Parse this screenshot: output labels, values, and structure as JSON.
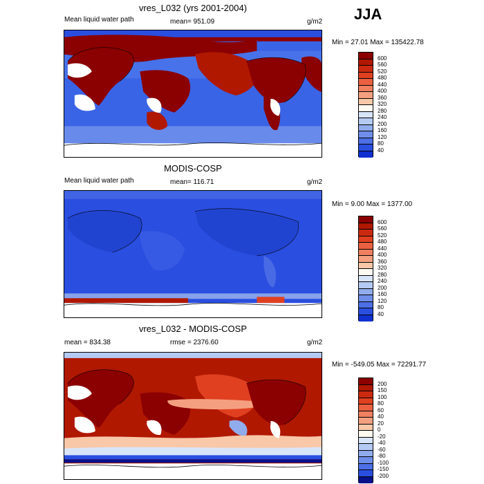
{
  "season": "JJA",
  "panels": [
    {
      "title": "vres_L032 (yrs 2001-2004)",
      "left_label": "Mean liquid water path",
      "stat": "mean= 951.09",
      "units": "g/m2",
      "minmax": "Min =  27.01 Max = 135422.78",
      "levels": [
        "600",
        "560",
        "520",
        "480",
        "440",
        "400",
        "360",
        "320",
        "280",
        "240",
        "200",
        "160",
        "120",
        "80",
        "40"
      ],
      "colors": [
        "#8b0000",
        "#b01800",
        "#cc2a10",
        "#e04020",
        "#ea6040",
        "#f08060",
        "#f4a080",
        "#f8c8a8",
        "#fdfaf2",
        "#d8e4f8",
        "#b4caf2",
        "#90acec",
        "#6e8eea",
        "#4c6ee6",
        "#2a4ee0",
        "#1030d0"
      ]
    },
    {
      "title": "MODIS-COSP",
      "left_label": "Mean liquid water path",
      "stat": "mean= 116.71",
      "units": "g/m2",
      "minmax": "Min =   9.00 Max = 1377.00",
      "levels": [
        "600",
        "560",
        "520",
        "480",
        "440",
        "400",
        "360",
        "320",
        "280",
        "240",
        "200",
        "160",
        "120",
        "80",
        "40"
      ],
      "colors": [
        "#8b0000",
        "#b01800",
        "#cc2a10",
        "#e04020",
        "#ea6040",
        "#f08060",
        "#f4a080",
        "#f8c8a8",
        "#fdfaf2",
        "#d8e4f8",
        "#b4caf2",
        "#90acec",
        "#6e8eea",
        "#4c6ee6",
        "#2a4ee0",
        "#1030d0"
      ]
    },
    {
      "title": "vres_L032 - MODIS-COSP",
      "left_label": "mean = 834.38",
      "stat": "rmse = 2376.60",
      "units": "g/m2",
      "minmax": "Min = -549.05 Max = 72291.77",
      "levels": [
        "200",
        "150",
        "100",
        "80",
        "60",
        "40",
        "20",
        "0",
        "-20",
        "-40",
        "-60",
        "-80",
        "-100",
        "-150",
        "-200"
      ],
      "colors": [
        "#8b0000",
        "#b01800",
        "#cc2a10",
        "#e04020",
        "#ea6040",
        "#f08060",
        "#f4a080",
        "#f8c8a8",
        "#fdfaf2",
        "#d8e4f8",
        "#b4caf2",
        "#90acec",
        "#6e8eea",
        "#4c6ee6",
        "#2a4ee0",
        "#08108a"
      ]
    }
  ]
}
